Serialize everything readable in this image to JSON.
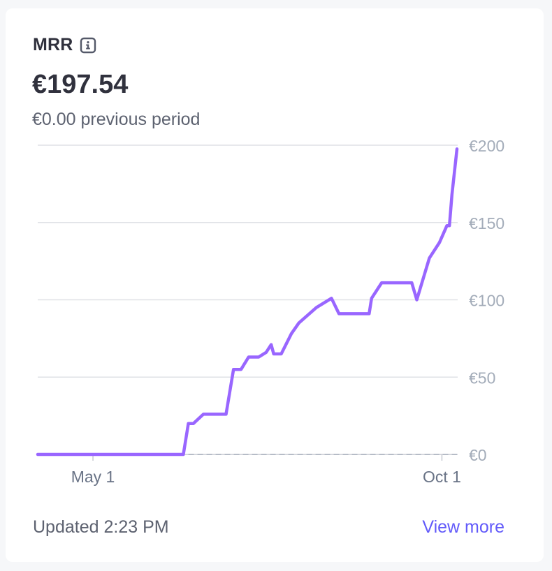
{
  "card": {
    "title": "MRR",
    "info_icon": "info-icon",
    "value": "€197.54",
    "previous": "€0.00 previous period",
    "updated": "Updated 2:23 PM",
    "view_more": "View more"
  },
  "colors": {
    "line": "#9966ff",
    "grid": "#dfe1e6",
    "axis_text": "#a3acb9",
    "link": "#625afa"
  },
  "chart_data": {
    "type": "line",
    "series": [
      {
        "x": [
          0,
          58,
          60,
          62,
          66,
          68,
          75,
          78,
          81,
          84,
          88,
          91,
          93,
          94,
          97,
          101,
          104,
          111,
          117,
          120,
          124,
          130,
          132,
          133,
          137,
          149,
          151,
          156,
          160,
          163,
          164,
          165,
          167
        ],
        "y": [
          0,
          0,
          20,
          20,
          26,
          26,
          26,
          55,
          55,
          63,
          63,
          66,
          71,
          65,
          65,
          78,
          85,
          95,
          101,
          91,
          91,
          91,
          91,
          101,
          111,
          111,
          100,
          127,
          137,
          148,
          148,
          168,
          197.54
        ]
      }
    ],
    "x_ticks": [
      {
        "label": "May 1",
        "x": 22
      },
      {
        "label": "Oct 1",
        "x": 161
      }
    ],
    "y_ticks": [
      "€200",
      "€150",
      "€100",
      "€50",
      "€0"
    ],
    "y_values": [
      200,
      150,
      100,
      50,
      0
    ],
    "ylim": [
      0,
      200
    ],
    "xlim": [
      0,
      167
    ],
    "comparison_baseline": 0,
    "grid": true
  }
}
